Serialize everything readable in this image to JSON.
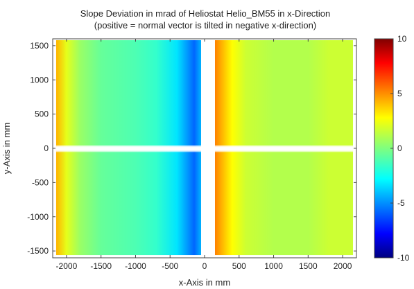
{
  "chart_data": {
    "type": "heatmap",
    "title": "Slope Deviation in mrad of Heliostat Helio_BM55 in x-Direction",
    "subtitle": "(positive = normal vector is tilted in negative x-direction)",
    "xlabel": "x-Axis in mm",
    "ylabel": "y-Axis in mm",
    "xlim": [
      -2200,
      2200
    ],
    "ylim": [
      -1600,
      1600
    ],
    "x_ticks": [
      -2000,
      -1500,
      -1000,
      -500,
      0,
      500,
      1000,
      1500,
      2000
    ],
    "y_ticks": [
      -1500,
      -1000,
      -500,
      0,
      500,
      1000,
      1500
    ],
    "colorbar": {
      "range": [
        -10,
        10
      ],
      "ticks": [
        10,
        5,
        0,
        -5,
        -10
      ],
      "colormap": "jet"
    },
    "facets": [
      {
        "x_range": [
          -2150,
          -50
        ],
        "y_range": [
          -1560,
          1580
        ]
      },
      {
        "x_range": [
          150,
          2150
        ],
        "y_range": [
          -1560,
          1580
        ]
      }
    ],
    "x_profile": [
      {
        "x": -2150,
        "v": 4.0
      },
      {
        "x": -2000,
        "v": 2.0
      },
      {
        "x": -1800,
        "v": 0.5
      },
      {
        "x": -1500,
        "v": -0.5
      },
      {
        "x": -1000,
        "v": -1.0
      },
      {
        "x": -700,
        "v": -1.5
      },
      {
        "x": -400,
        "v": -3.0
      },
      {
        "x": -150,
        "v": -5.5
      },
      {
        "x": -50,
        "v": -4.0
      },
      {
        "x": 150,
        "v": 5.0
      },
      {
        "x": 250,
        "v": 4.0
      },
      {
        "x": 400,
        "v": 2.5
      },
      {
        "x": 600,
        "v": 1.5
      },
      {
        "x": 1000,
        "v": 1.0
      },
      {
        "x": 1500,
        "v": 1.0
      },
      {
        "x": 1800,
        "v": 1.5
      },
      {
        "x": 2150,
        "v": 1.5
      }
    ],
    "data_gap_rows_y": [
      0
    ]
  }
}
